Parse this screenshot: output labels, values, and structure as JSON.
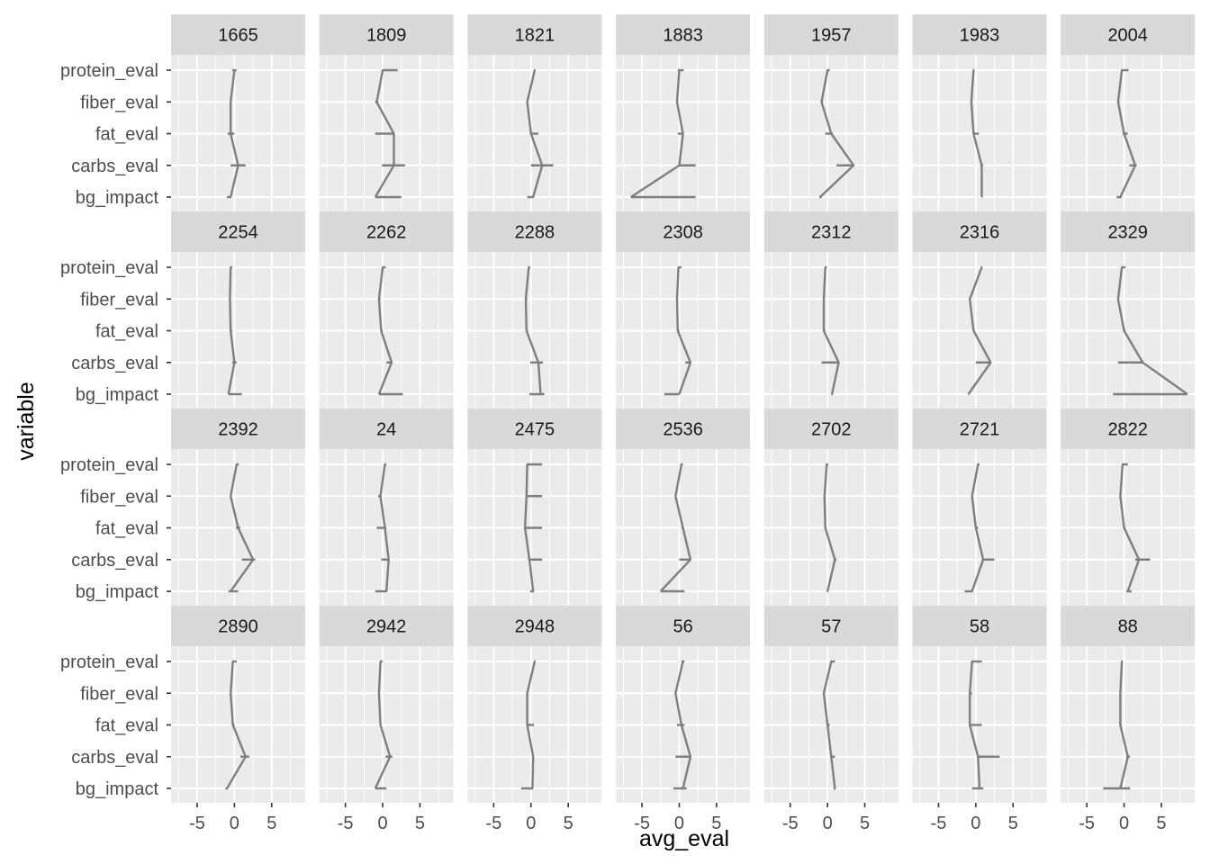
{
  "chart_data": {
    "type": "line",
    "xlabel": "avg_eval",
    "ylabel": "variable",
    "xlim": [
      -8.5,
      9.5
    ],
    "x_ticks": [
      -5,
      0,
      5
    ],
    "y_categories": [
      "bg_impact",
      "carbs_eval",
      "fat_eval",
      "fiber_eval",
      "protein_eval"
    ],
    "facets": [
      {
        "label": "1665",
        "values": [
          -0.5,
          0.5,
          -0.5,
          -0.5,
          0.0
        ],
        "ranges": [
          [
            -1.0,
            -0.4
          ],
          [
            -0.5,
            1.5
          ],
          [
            -0.9,
            0.0
          ],
          [
            -0.6,
            -0.4
          ],
          [
            -0.3,
            0.3
          ]
        ]
      },
      {
        "label": "1809",
        "values": [
          -1.0,
          1.5,
          1.5,
          -0.8,
          0.0
        ],
        "ranges": [
          [
            -1.0,
            2.5
          ],
          [
            -0.1,
            3.0
          ],
          [
            -1.0,
            1.5
          ],
          [
            -1.0,
            -0.6
          ],
          [
            -0.1,
            2.0
          ]
        ]
      },
      {
        "label": "1821",
        "values": [
          0.3,
          1.5,
          0.0,
          -0.5,
          0.5
        ],
        "ranges": [
          [
            -0.5,
            0.4
          ],
          [
            0.0,
            3.0
          ],
          [
            -0.1,
            1.0
          ],
          [
            -0.6,
            -0.4
          ],
          [
            0.4,
            0.6
          ]
        ]
      },
      {
        "label": "1883",
        "values": [
          -6.5,
          0.0,
          0.5,
          -0.3,
          0.0
        ],
        "ranges": [
          [
            -6.5,
            2.2
          ],
          [
            0.0,
            2.2
          ],
          [
            -0.2,
            0.5
          ],
          [
            -0.4,
            -0.2
          ],
          [
            -0.2,
            0.6
          ]
        ]
      },
      {
        "label": "1957",
        "values": [
          -1.0,
          3.5,
          0.5,
          -0.8,
          0.0
        ],
        "ranges": [
          [
            -1.1,
            -0.8
          ],
          [
            1.2,
            3.5
          ],
          [
            -0.3,
            0.7
          ],
          [
            -0.9,
            -0.6
          ],
          [
            -0.1,
            0.3
          ]
        ]
      },
      {
        "label": "1983",
        "values": [
          0.8,
          0.8,
          -0.3,
          -0.6,
          -0.3
        ],
        "ranges": [
          [
            0.8,
            0.9
          ],
          [
            0.6,
            1.0
          ],
          [
            -0.3,
            0.4
          ],
          [
            -0.7,
            -0.5
          ],
          [
            -0.4,
            -0.2
          ]
        ]
      },
      {
        "label": "2004",
        "values": [
          -0.5,
          1.5,
          0.0,
          -0.8,
          -0.3
        ],
        "ranges": [
          [
            -1.0,
            -0.3
          ],
          [
            0.7,
            1.7
          ],
          [
            -0.2,
            0.5
          ],
          [
            -0.9,
            -0.6
          ],
          [
            -0.4,
            0.6
          ]
        ]
      },
      {
        "label": "2254",
        "values": [
          -0.8,
          0.0,
          -0.5,
          -0.6,
          -0.5
        ],
        "ranges": [
          [
            -0.8,
            1.0
          ],
          [
            -0.3,
            0.3
          ],
          [
            -0.6,
            -0.3
          ],
          [
            -0.7,
            -0.5
          ],
          [
            -0.6,
            -0.3
          ]
        ]
      },
      {
        "label": "2262",
        "values": [
          -0.5,
          1.2,
          -0.2,
          -0.5,
          0.0
        ],
        "ranges": [
          [
            -0.5,
            2.7
          ],
          [
            0.5,
            1.3
          ],
          [
            -0.3,
            0.0
          ],
          [
            -0.6,
            -0.3
          ],
          [
            -0.1,
            0.4
          ]
        ]
      },
      {
        "label": "2288",
        "values": [
          1.3,
          1.0,
          -0.6,
          -0.7,
          -0.3
        ],
        "ranges": [
          [
            -0.2,
            1.8
          ],
          [
            -0.1,
            1.6
          ],
          [
            -0.7,
            -0.4
          ],
          [
            -0.8,
            -0.5
          ],
          [
            -0.4,
            -0.1
          ]
        ]
      },
      {
        "label": "2308",
        "values": [
          0.0,
          1.5,
          -0.2,
          -0.3,
          -0.1
        ],
        "ranges": [
          [
            -2.0,
            0.0
          ],
          [
            0.8,
            1.6
          ],
          [
            -0.3,
            0.0
          ],
          [
            -0.4,
            -0.2
          ],
          [
            -0.2,
            0.3
          ]
        ]
      },
      {
        "label": "2312",
        "values": [
          0.6,
          1.5,
          -0.5,
          -0.5,
          -0.3
        ],
        "ranges": [
          [
            0.5,
            0.7
          ],
          [
            -0.8,
            1.6
          ],
          [
            -0.6,
            -0.3
          ],
          [
            -0.6,
            -0.4
          ],
          [
            -0.4,
            -0.1
          ]
        ]
      },
      {
        "label": "2316",
        "values": [
          -1.0,
          2.0,
          -0.3,
          -0.8,
          0.8
        ],
        "ranges": [
          [
            -1.0,
            -0.9
          ],
          [
            0.0,
            2.0
          ],
          [
            -0.4,
            -0.2
          ],
          [
            -0.9,
            -0.7
          ],
          [
            0.7,
            0.9
          ]
        ]
      },
      {
        "label": "2329",
        "values": [
          8.5,
          2.5,
          0.0,
          -0.8,
          -0.3
        ],
        "ranges": [
          [
            -1.5,
            8.5
          ],
          [
            -0.8,
            2.5
          ],
          [
            -0.1,
            0.2
          ],
          [
            -0.9,
            -0.7
          ],
          [
            -0.4,
            0.2
          ]
        ]
      },
      {
        "label": "2392",
        "values": [
          -0.5,
          2.5,
          0.5,
          -0.5,
          0.3
        ],
        "ranges": [
          [
            -0.8,
            0.5
          ],
          [
            1.0,
            2.8
          ],
          [
            0.2,
            0.8
          ],
          [
            -0.6,
            -0.4
          ],
          [
            0.2,
            0.6
          ]
        ]
      },
      {
        "label": "24",
        "values": [
          0.5,
          0.8,
          0.3,
          -0.3,
          0.3
        ],
        "ranges": [
          [
            -1.0,
            0.6
          ],
          [
            -0.2,
            0.9
          ],
          [
            -0.8,
            0.5
          ],
          [
            -0.6,
            -0.2
          ],
          [
            0.2,
            0.5
          ]
        ]
      },
      {
        "label": "2475",
        "values": [
          0.3,
          -0.2,
          -0.8,
          -0.6,
          -0.5
        ],
        "ranges": [
          [
            -0.1,
            0.4
          ],
          [
            -0.4,
            1.5
          ],
          [
            -0.9,
            1.5
          ],
          [
            -0.7,
            1.5
          ],
          [
            -0.6,
            1.5
          ]
        ]
      },
      {
        "label": "2536",
        "values": [
          -2.5,
          1.5,
          0.5,
          -0.5,
          0.3
        ],
        "ranges": [
          [
            -2.5,
            0.7
          ],
          [
            0.0,
            1.6
          ],
          [
            0.3,
            0.6
          ],
          [
            -0.6,
            -0.4
          ],
          [
            0.2,
            0.5
          ]
        ]
      },
      {
        "label": "2702",
        "values": [
          0.0,
          1.0,
          -0.3,
          -0.4,
          -0.1
        ],
        "ranges": [
          [
            -0.1,
            0.1
          ],
          [
            0.8,
            1.2
          ],
          [
            -0.4,
            -0.2
          ],
          [
            -0.5,
            -0.3
          ],
          [
            -0.2,
            0.1
          ]
        ]
      },
      {
        "label": "2721",
        "values": [
          -0.5,
          1.0,
          0.0,
          -0.5,
          0.3
        ],
        "ranges": [
          [
            -1.5,
            -0.4
          ],
          [
            0.8,
            2.5
          ],
          [
            -0.1,
            0.3
          ],
          [
            -0.6,
            -0.4
          ],
          [
            0.2,
            0.5
          ]
        ]
      },
      {
        "label": "2822",
        "values": [
          0.5,
          2.0,
          0.0,
          -0.5,
          -0.2
        ],
        "ranges": [
          [
            0.3,
            1.0
          ],
          [
            1.5,
            3.5
          ],
          [
            -0.1,
            0.2
          ],
          [
            -0.6,
            -0.4
          ],
          [
            -0.3,
            0.5
          ]
        ]
      },
      {
        "label": "2890",
        "values": [
          -1.0,
          1.5,
          -0.2,
          -0.5,
          -0.2
        ],
        "ranges": [
          [
            -1.2,
            -0.9
          ],
          [
            0.8,
            2.0
          ],
          [
            -0.3,
            0.0
          ],
          [
            -0.6,
            -0.4
          ],
          [
            -0.3,
            0.3
          ]
        ]
      },
      {
        "label": "2942",
        "values": [
          -1.0,
          1.0,
          -0.3,
          -0.5,
          -0.3
        ],
        "ranges": [
          [
            -1.0,
            0.5
          ],
          [
            0.4,
            1.3
          ],
          [
            -0.4,
            -0.2
          ],
          [
            -0.6,
            -0.4
          ],
          [
            -0.4,
            0.0
          ]
        ]
      },
      {
        "label": "2948",
        "values": [
          0.2,
          0.3,
          -0.5,
          -0.5,
          0.5
        ],
        "ranges": [
          [
            -1.3,
            0.3
          ],
          [
            0.2,
            0.4
          ],
          [
            -0.6,
            0.4
          ],
          [
            -0.6,
            -0.4
          ],
          [
            0.4,
            0.6
          ]
        ]
      },
      {
        "label": "56",
        "values": [
          0.5,
          1.5,
          0.3,
          -0.5,
          0.5
        ],
        "ranges": [
          [
            -0.8,
            1.0
          ],
          [
            -0.5,
            1.6
          ],
          [
            -0.3,
            0.7
          ],
          [
            -0.6,
            -0.4
          ],
          [
            0.3,
            0.7
          ]
        ]
      },
      {
        "label": "57",
        "values": [
          1.0,
          0.5,
          0.0,
          -0.5,
          0.5
        ],
        "ranges": [
          [
            0.8,
            1.1
          ],
          [
            0.4,
            1.0
          ],
          [
            -0.1,
            0.3
          ],
          [
            -0.6,
            -0.4
          ],
          [
            0.4,
            1.0
          ]
        ]
      },
      {
        "label": "58",
        "values": [
          0.5,
          0.3,
          -0.8,
          -0.8,
          -0.5
        ],
        "ranges": [
          [
            -0.5,
            1.0
          ],
          [
            0.2,
            3.2
          ],
          [
            -0.9,
            0.8
          ],
          [
            -0.9,
            -0.5
          ],
          [
            -0.6,
            0.8
          ]
        ]
      },
      {
        "label": "88",
        "values": [
          -0.5,
          0.5,
          -0.5,
          -0.5,
          -0.3
        ],
        "ranges": [
          [
            -2.8,
            0.8
          ],
          [
            0.3,
            0.8
          ],
          [
            -0.6,
            -0.3
          ],
          [
            -0.6,
            -0.4
          ],
          [
            -0.4,
            -0.2
          ]
        ]
      }
    ]
  }
}
